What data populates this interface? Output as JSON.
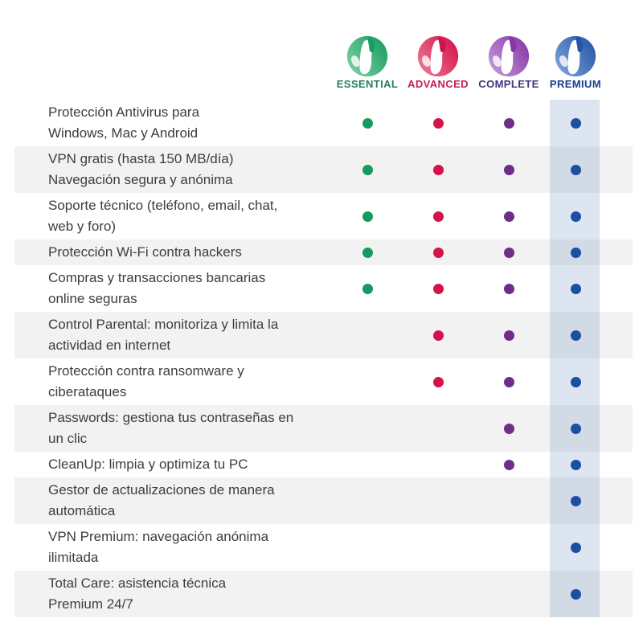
{
  "table_name": "feature-comparison",
  "text_color": "#3d3d3d",
  "row_colors": {
    "odd": "#ffffff",
    "even": "#f2f2f2"
  },
  "highlight": {
    "color": "#1b52a4",
    "opacity": 0.15
  },
  "plans": [
    {
      "name": "ESSENTIAL",
      "icon": "panda-logo",
      "label_color": "#267d5f",
      "logo_light": "#7ecfa2",
      "logo_dark": "#189e60",
      "dot_color": "#169a5f",
      "highlighted": false
    },
    {
      "name": "ADVANCED",
      "icon": "panda-logo",
      "label_color": "#c52150",
      "logo_light": "#ee7a97",
      "logo_dark": "#d4124a",
      "dot_color": "#d6124a",
      "highlighted": false
    },
    {
      "name": "COMPLETE",
      "icon": "panda-logo",
      "label_color": "#45307f",
      "logo_light": "#c39ad8",
      "logo_dark": "#8736a5",
      "dot_color": "#6e2d88",
      "highlighted": false
    },
    {
      "name": "PREMIUM",
      "icon": "panda-logo",
      "label_color": "#153f8f",
      "logo_light": "#7da3d8",
      "logo_dark": "#2456a8",
      "dot_color": "#1c4fa1",
      "highlighted": true
    }
  ],
  "features": [
    {
      "label": "Protección Antivirus para\nWindows, Mac y Android",
      "included": [
        true,
        true,
        true,
        true
      ]
    },
    {
      "label": "VPN gratis (hasta 150 MB/día)\nNavegación segura y anónima",
      "included": [
        true,
        true,
        true,
        true
      ]
    },
    {
      "label": "Soporte técnico (teléfono, email, chat,\nweb y foro)",
      "included": [
        true,
        true,
        true,
        true
      ]
    },
    {
      "label": "Protección Wi-Fi contra hackers",
      "included": [
        true,
        true,
        true,
        true
      ]
    },
    {
      "label": "Compras y transacciones bancarias\nonline seguras",
      "included": [
        true,
        true,
        true,
        true
      ]
    },
    {
      "label": "Control Parental: monitoriza y limita la\nactividad en internet",
      "included": [
        false,
        true,
        true,
        true
      ]
    },
    {
      "label": "Protección contra ransomware y\nciberataques",
      "included": [
        false,
        true,
        true,
        true
      ]
    },
    {
      "label": "Passwords: gestiona tus contraseñas en\nun clic",
      "included": [
        false,
        false,
        true,
        true
      ]
    },
    {
      "label": "CleanUp: limpia y optimiza tu PC",
      "included": [
        false,
        false,
        true,
        true
      ]
    },
    {
      "label": "Gestor de actualizaciones de manera\nautomática",
      "included": [
        false,
        false,
        false,
        true
      ]
    },
    {
      "label": "VPN Premium: navegación anónima\nilimitada",
      "included": [
        false,
        false,
        false,
        true
      ]
    },
    {
      "label": "Total Care: asistencia técnica\nPremium 24/7",
      "included": [
        false,
        false,
        false,
        true
      ]
    }
  ]
}
